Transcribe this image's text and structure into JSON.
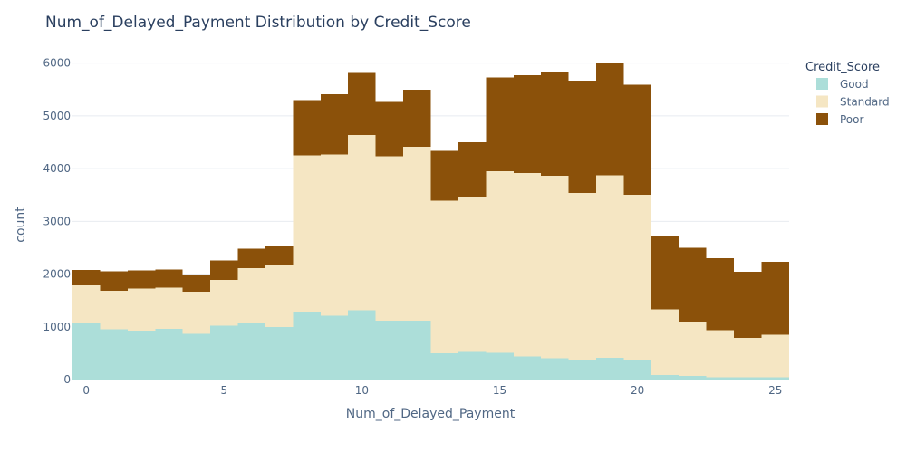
{
  "chart_data": {
    "type": "bar",
    "stacked": true,
    "title": "Num_of_Delayed_Payment Distribution by Credit_Score",
    "xlabel": "Num_of_Delayed_Payment",
    "ylabel": "count",
    "x": [
      0,
      1,
      2,
      3,
      4,
      5,
      6,
      7,
      8,
      9,
      10,
      11,
      12,
      13,
      14,
      15,
      16,
      17,
      18,
      19,
      20,
      21,
      22,
      23,
      24,
      25
    ],
    "xlim": [
      -0.5,
      25.5
    ],
    "ylim": [
      0,
      6200
    ],
    "x_ticks": [
      0,
      5,
      10,
      15,
      20,
      25
    ],
    "y_ticks": [
      0,
      1000,
      2000,
      3000,
      4000,
      5000,
      6000
    ],
    "grid": true,
    "legend_title": "Credit_Score",
    "legend_position": "top-right",
    "series": [
      {
        "name": "Good",
        "color": "#acded9",
        "values": [
          1070,
          950,
          930,
          960,
          870,
          1020,
          1070,
          1000,
          1290,
          1210,
          1310,
          1120,
          1120,
          500,
          540,
          510,
          440,
          400,
          380,
          410,
          380,
          90,
          70,
          40,
          40,
          40
        ]
      },
      {
        "name": "Standard",
        "color": "#f5e6c3",
        "values": [
          720,
          730,
          800,
          780,
          800,
          870,
          1040,
          1160,
          2960,
          3060,
          3330,
          3110,
          3290,
          2890,
          2930,
          3440,
          3480,
          3460,
          3160,
          3460,
          3120,
          1240,
          1030,
          900,
          750,
          810
        ]
      },
      {
        "name": "Poor",
        "color": "#8b510a",
        "values": [
          290,
          370,
          340,
          350,
          310,
          370,
          370,
          380,
          1050,
          1140,
          1170,
          1030,
          1090,
          950,
          1030,
          1780,
          1850,
          1960,
          2130,
          2120,
          2090,
          1380,
          1400,
          1360,
          1250,
          1380
        ]
      }
    ]
  }
}
